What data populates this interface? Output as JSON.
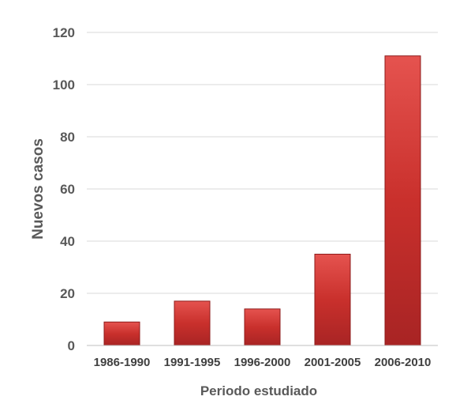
{
  "chart_data": {
    "type": "bar",
    "categories": [
      "1986-1990",
      "1991-1995",
      "1996-2000",
      "2001-2005",
      "2006-2010"
    ],
    "values": [
      9,
      17,
      14,
      35,
      111
    ],
    "xlabel": "Periodo estudiado",
    "ylabel": "Nuevos casos",
    "ylim": [
      0,
      120
    ],
    "yticks": [
      0,
      20,
      40,
      60,
      80,
      100,
      120
    ],
    "grid": true,
    "colors": {
      "bar_light": "#e5534f",
      "bar_mid": "#c9302c",
      "bar_dark": "#8e1b1b",
      "grid": "#d9d9d9",
      "axis": "#bfbfbf"
    }
  }
}
